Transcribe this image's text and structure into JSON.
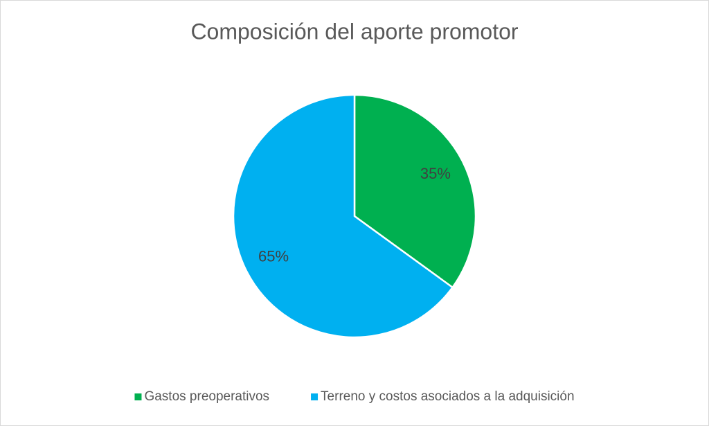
{
  "chart_data": {
    "type": "pie",
    "title": "Composición del aporte promotor",
    "categories": [
      "Gastos preoperativos",
      "Terreno y costos asociados a la adquisición"
    ],
    "values": [
      35,
      65
    ],
    "value_labels": [
      "35%",
      "65%"
    ],
    "colors": [
      "#00b050",
      "#00b0f0"
    ],
    "legend": "bottom"
  }
}
